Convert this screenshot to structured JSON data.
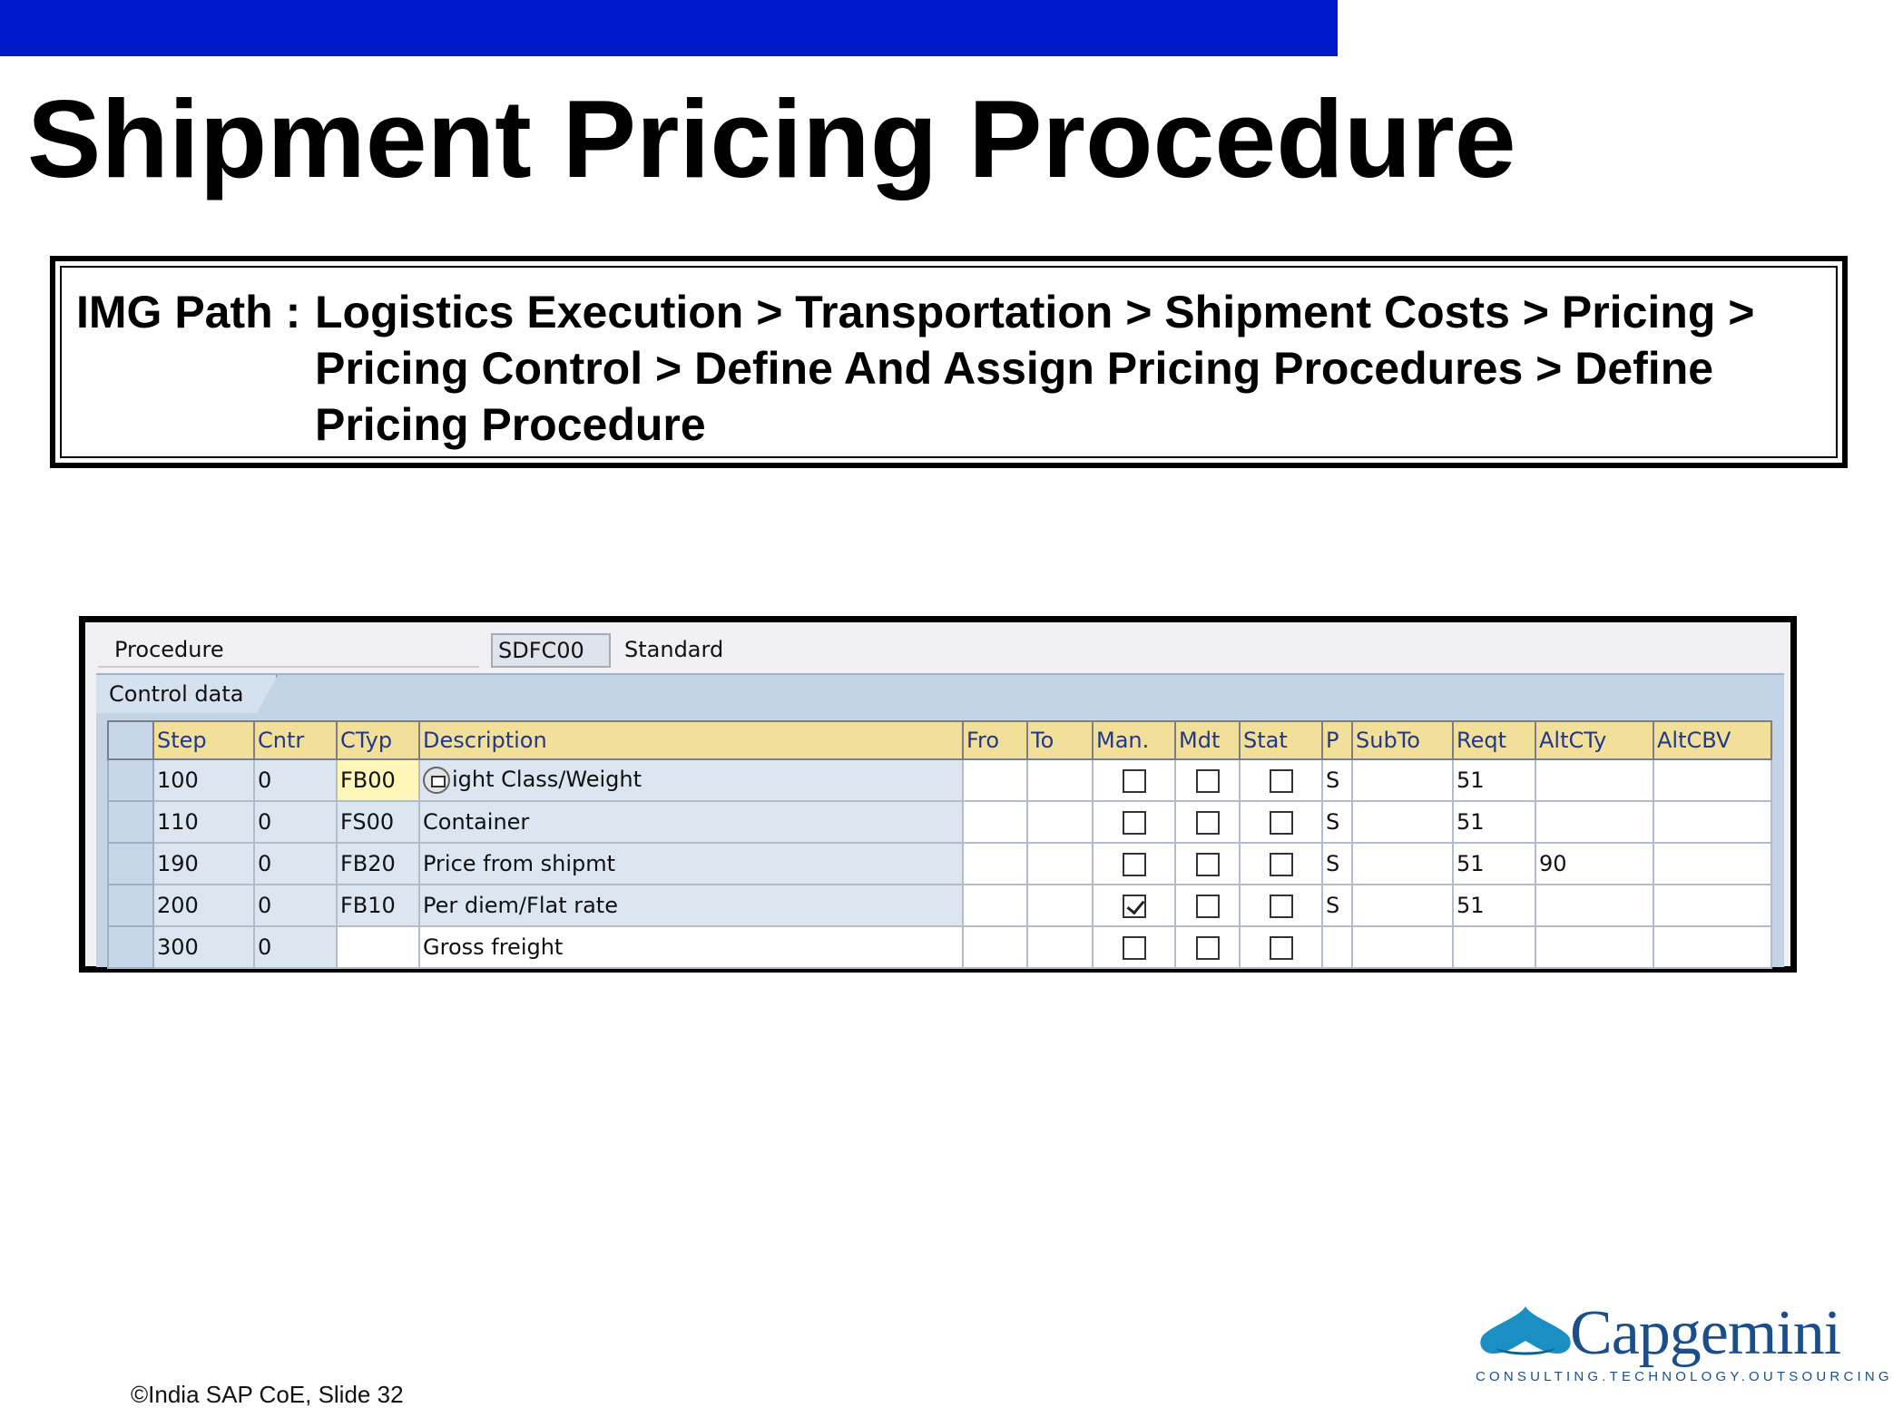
{
  "slide": {
    "title": "Shipment Pricing Procedure",
    "img_path_label": "IMG Path :",
    "img_path_lines": [
      "Logistics Execution > Transportation > Shipment Costs > Pricing >",
      "Pricing Control > Define And Assign Pricing Procedures > Define",
      "Pricing Procedure"
    ],
    "footer": "©India SAP CoE, Slide 32",
    "top_bar_color": "#0019c9"
  },
  "sap": {
    "procedure_label": "Procedure",
    "procedure_value": "SDFC00",
    "procedure_desc": "Standard",
    "tab_label": "Control data",
    "columns": [
      "Step",
      "Cntr",
      "CTyp",
      "Description",
      "Fro",
      "To",
      "Man.",
      "Mdt",
      "Stat",
      "P",
      "SubTo",
      "Reqt",
      "AltCTy",
      "AltCBV"
    ],
    "rows": [
      {
        "step": "100",
        "cntr": "0",
        "ctyp": "FB00",
        "desc": "ight Class/Weight",
        "fro": "",
        "to": "",
        "man": false,
        "mdt": false,
        "stat": false,
        "p": "S",
        "subto": "",
        "reqt": "51",
        "altcty": "",
        "altcbv": ""
      },
      {
        "step": "110",
        "cntr": "0",
        "ctyp": "FS00",
        "desc": "Container",
        "fro": "",
        "to": "",
        "man": false,
        "mdt": false,
        "stat": false,
        "p": "S",
        "subto": "",
        "reqt": "51",
        "altcty": "",
        "altcbv": ""
      },
      {
        "step": "190",
        "cntr": "0",
        "ctyp": "FB20",
        "desc": "Price from shipmt",
        "fro": "",
        "to": "",
        "man": false,
        "mdt": false,
        "stat": false,
        "p": "S",
        "subto": "",
        "reqt": "51",
        "altcty": "90",
        "altcbv": ""
      },
      {
        "step": "200",
        "cntr": "0",
        "ctyp": "FB10",
        "desc": "Per diem/Flat rate",
        "fro": "",
        "to": "",
        "man": true,
        "mdt": false,
        "stat": false,
        "p": "S",
        "subto": "",
        "reqt": "51",
        "altcty": "",
        "altcbv": ""
      },
      {
        "step": "300",
        "cntr": "0",
        "ctyp": "",
        "desc": "Gross freight",
        "fro": "",
        "to": "",
        "man": false,
        "mdt": false,
        "stat": false,
        "p": "",
        "subto": "",
        "reqt": "",
        "altcty": "",
        "altcbv": ""
      }
    ]
  },
  "logo": {
    "brand": "Capgemini",
    "tagline": "CONSULTING.TECHNOLOGY.OUTSOURCING",
    "color": "#1a4f8b"
  }
}
